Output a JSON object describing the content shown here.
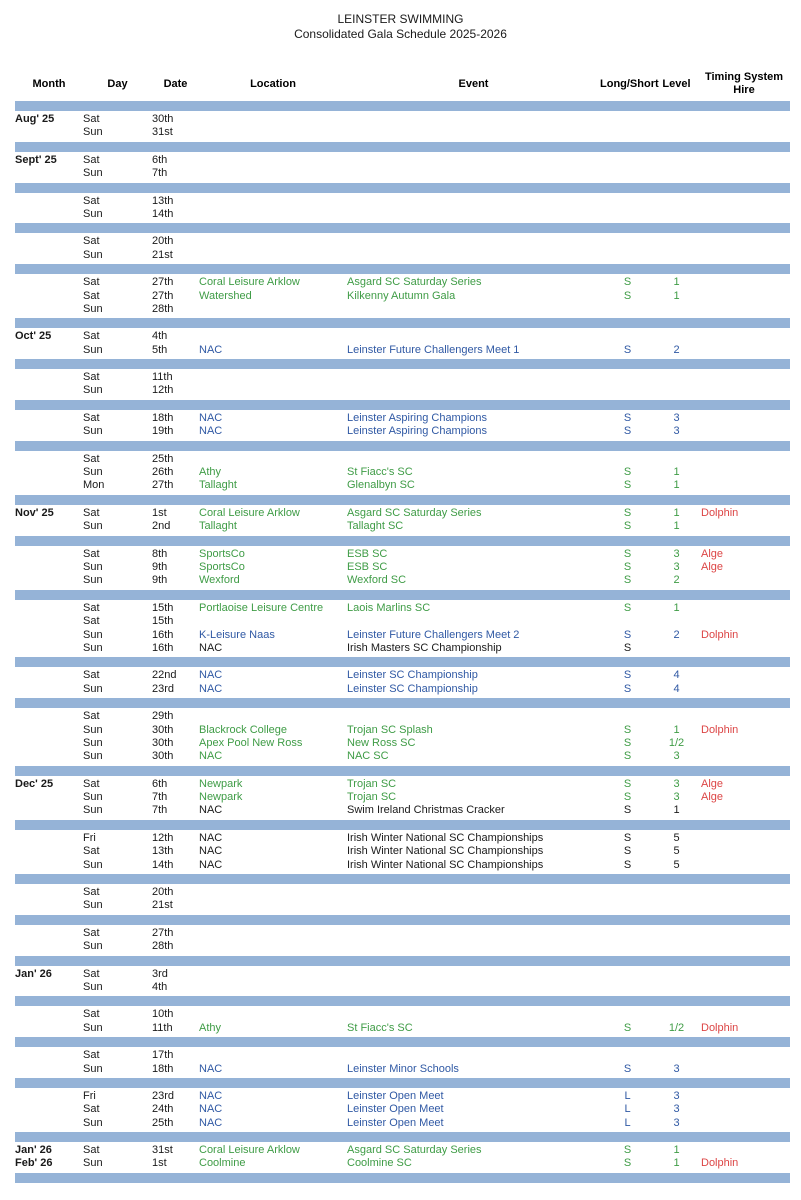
{
  "title": "LEINSTER SWIMMING",
  "subtitle": "Consolidated Gala Schedule 2025-2026",
  "columns": [
    "Month",
    "Day",
    "Date",
    "Location",
    "Event",
    "Long/Short",
    "Level",
    "Timing System Hire"
  ],
  "colors": {
    "separator": "#95B3D7",
    "green": "#3F9C46",
    "blue": "#3059A4",
    "red": "#DC4545",
    "black": "#1a1a1a"
  },
  "rows": [
    {
      "sep": true
    },
    {
      "month": "Aug' 25",
      "day": "Sat",
      "date": "30th",
      "location": "",
      "event": "",
      "long_short": "",
      "level": "",
      "timing": "",
      "color": "black"
    },
    {
      "month": "",
      "day": "Sun",
      "date": "31st",
      "location": "",
      "event": "",
      "long_short": "",
      "level": "",
      "timing": "",
      "color": "black"
    },
    {
      "sep": true
    },
    {
      "month": "Sept' 25",
      "day": "Sat",
      "date": "6th",
      "location": "",
      "event": "",
      "long_short": "",
      "level": "",
      "timing": "",
      "color": "black"
    },
    {
      "month": "",
      "day": "Sun",
      "date": "7th",
      "location": "",
      "event": "",
      "long_short": "",
      "level": "",
      "timing": "",
      "color": "black"
    },
    {
      "sep": true
    },
    {
      "month": "",
      "day": "Sat",
      "date": "13th",
      "location": "",
      "event": "",
      "long_short": "",
      "level": "",
      "timing": "",
      "color": "black"
    },
    {
      "month": "",
      "day": "Sun",
      "date": "14th",
      "location": "",
      "event": "",
      "long_short": "",
      "level": "",
      "timing": "",
      "color": "black"
    },
    {
      "sep": true
    },
    {
      "month": "",
      "day": "Sat",
      "date": "20th",
      "location": "",
      "event": "",
      "long_short": "",
      "level": "",
      "timing": "",
      "color": "black"
    },
    {
      "month": "",
      "day": "Sun",
      "date": "21st",
      "location": "",
      "event": "",
      "long_short": "",
      "level": "",
      "timing": "",
      "color": "black"
    },
    {
      "sep": true
    },
    {
      "month": "",
      "day": "Sat",
      "date": "27th",
      "location": "Coral Leisure Arklow",
      "event": "Asgard SC Saturday Series",
      "long_short": "S",
      "level": "1",
      "timing": "",
      "color": "green"
    },
    {
      "month": "",
      "day": "Sat",
      "date": "27th",
      "location": "Watershed",
      "event": "Kilkenny Autumn Gala",
      "long_short": "S",
      "level": "1",
      "timing": "",
      "color": "green"
    },
    {
      "month": "",
      "day": "Sun",
      "date": "28th",
      "location": "",
      "event": "",
      "long_short": "",
      "level": "",
      "timing": "",
      "color": "black"
    },
    {
      "sep": true
    },
    {
      "month": "Oct' 25",
      "day": "Sat",
      "date": "4th",
      "location": "",
      "event": "",
      "long_short": "",
      "level": "",
      "timing": "",
      "color": "black"
    },
    {
      "month": "",
      "day": "Sun",
      "date": "5th",
      "location": "NAC",
      "event": "Leinster Future Challengers Meet 1",
      "long_short": "S",
      "level": "2",
      "timing": "",
      "color": "blue"
    },
    {
      "sep": true
    },
    {
      "month": "",
      "day": "Sat",
      "date": "11th",
      "location": "",
      "event": "",
      "long_short": "",
      "level": "",
      "timing": "",
      "color": "black"
    },
    {
      "month": "",
      "day": "Sun",
      "date": "12th",
      "location": "",
      "event": "",
      "long_short": "",
      "level": "",
      "timing": "",
      "color": "black"
    },
    {
      "sep": true
    },
    {
      "month": "",
      "day": "Sat",
      "date": "18th",
      "location": "NAC",
      "event": "Leinster Aspiring Champions",
      "long_short": "S",
      "level": "3",
      "timing": "",
      "color": "blue"
    },
    {
      "month": "",
      "day": "Sun",
      "date": "19th",
      "location": "NAC",
      "event": "Leinster Aspiring Champions",
      "long_short": "S",
      "level": "3",
      "timing": "",
      "color": "blue"
    },
    {
      "sep": true
    },
    {
      "month": "",
      "day": "Sat",
      "date": "25th",
      "location": "",
      "event": "",
      "long_short": "",
      "level": "",
      "timing": "",
      "color": "black"
    },
    {
      "month": "",
      "day": "Sun",
      "date": "26th",
      "location": "Athy",
      "event": "St Fiacc's SC",
      "long_short": "S",
      "level": "1",
      "timing": "",
      "color": "green"
    },
    {
      "month": "",
      "day": "Mon",
      "date": "27th",
      "location": "Tallaght",
      "event": "Glenalbyn SC",
      "long_short": "S",
      "level": "1",
      "timing": "",
      "color": "green"
    },
    {
      "sep": true
    },
    {
      "month": "Nov' 25",
      "day": "Sat",
      "date": "1st",
      "location": "Coral Leisure Arklow",
      "event": "Asgard SC Saturday Series",
      "long_short": "S",
      "level": "1",
      "timing": "Dolphin",
      "color": "green"
    },
    {
      "month": "",
      "day": "Sun",
      "date": "2nd",
      "location": "Tallaght",
      "event": "Tallaght SC",
      "long_short": "S",
      "level": "1",
      "timing": "",
      "color": "green"
    },
    {
      "sep": true
    },
    {
      "month": "",
      "day": "Sat",
      "date": "8th",
      "location": "SportsCo",
      "event": "ESB SC",
      "long_short": "S",
      "level": "3",
      "timing": "Alge",
      "color": "green"
    },
    {
      "month": "",
      "day": "Sun",
      "date": "9th",
      "location": "SportsCo",
      "event": "ESB SC",
      "long_short": "S",
      "level": "3",
      "timing": "Alge",
      "color": "green"
    },
    {
      "month": "",
      "day": "Sun",
      "date": "9th",
      "location": "Wexford",
      "event": "Wexford SC",
      "long_short": "S",
      "level": "2",
      "timing": "",
      "color": "green"
    },
    {
      "sep": true
    },
    {
      "month": "",
      "day": "Sat",
      "date": "15th",
      "location": "Portlaoise Leisure Centre",
      "event": "Laois Marlins SC",
      "long_short": "S",
      "level": "1",
      "timing": "",
      "color": "green"
    },
    {
      "month": "",
      "day": "Sat",
      "date": "15th",
      "location": "",
      "event": "",
      "long_short": "",
      "level": "",
      "timing": "",
      "color": "black"
    },
    {
      "month": "",
      "day": "Sun",
      "date": "16th",
      "location": "K-Leisure Naas",
      "event": "Leinster Future Challengers Meet 2",
      "long_short": "S",
      "level": "2",
      "timing": "Dolphin",
      "color": "blue"
    },
    {
      "month": "",
      "day": "Sun",
      "date": "16th",
      "location": "NAC",
      "event": "Irish Masters SC Championship",
      "long_short": "S",
      "level": "",
      "timing": "",
      "color": "black"
    },
    {
      "sep": true
    },
    {
      "month": "",
      "day": "Sat",
      "date": "22nd",
      "location": "NAC",
      "event": "Leinster SC Championship",
      "long_short": "S",
      "level": "4",
      "timing": "",
      "color": "blue"
    },
    {
      "month": "",
      "day": "Sun",
      "date": "23rd",
      "location": "NAC",
      "event": "Leinster SC Championship",
      "long_short": "S",
      "level": "4",
      "timing": "",
      "color": "blue"
    },
    {
      "sep": true
    },
    {
      "month": "",
      "day": "Sat",
      "date": "29th",
      "location": "",
      "event": "",
      "long_short": "",
      "level": "",
      "timing": "",
      "color": "black"
    },
    {
      "month": "",
      "day": "Sun",
      "date": "30th",
      "location": "Blackrock College",
      "event": "Trojan SC Splash",
      "long_short": "S",
      "level": "1",
      "timing": "Dolphin",
      "color": "green"
    },
    {
      "month": "",
      "day": "Sun",
      "date": "30th",
      "location": "Apex Pool New Ross",
      "event": "New Ross SC",
      "long_short": "S",
      "level": "1/2",
      "timing": "",
      "color": "green"
    },
    {
      "month": "",
      "day": "Sun",
      "date": "30th",
      "location": "NAC",
      "event": "NAC SC",
      "long_short": "S",
      "level": "3",
      "timing": "",
      "color": "green"
    },
    {
      "sep": true
    },
    {
      "month": "Dec' 25",
      "day": "Sat",
      "date": "6th",
      "location": "Newpark",
      "event": "Trojan SC",
      "long_short": "S",
      "level": "3",
      "timing": "Alge",
      "color": "green"
    },
    {
      "month": "",
      "day": "Sun",
      "date": "7th",
      "location": "Newpark",
      "event": "Trojan SC",
      "long_short": "S",
      "level": "3",
      "timing": "Alge",
      "color": "green"
    },
    {
      "month": "",
      "day": "Sun",
      "date": "7th",
      "location": "NAC",
      "event": "Swim Ireland Christmas Cracker",
      "long_short": "S",
      "level": "1",
      "timing": "",
      "color": "black"
    },
    {
      "sep": true
    },
    {
      "month": "",
      "day": "Fri",
      "date": "12th",
      "location": "NAC",
      "event": "Irish Winter National SC Championships",
      "long_short": "S",
      "level": "5",
      "timing": "",
      "color": "black"
    },
    {
      "month": "",
      "day": "Sat",
      "date": "13th",
      "location": "NAC",
      "event": "Irish Winter National SC Championships",
      "long_short": "S",
      "level": "5",
      "timing": "",
      "color": "black"
    },
    {
      "month": "",
      "day": "Sun",
      "date": "14th",
      "location": "NAC",
      "event": "Irish Winter National SC Championships",
      "long_short": "S",
      "level": "5",
      "timing": "",
      "color": "black"
    },
    {
      "sep": true
    },
    {
      "month": "",
      "day": "Sat",
      "date": "20th",
      "location": "",
      "event": "",
      "long_short": "",
      "level": "",
      "timing": "",
      "color": "black"
    },
    {
      "month": "",
      "day": "Sun",
      "date": "21st",
      "location": "",
      "event": "",
      "long_short": "",
      "level": "",
      "timing": "",
      "color": "black"
    },
    {
      "sep": true
    },
    {
      "month": "",
      "day": "Sat",
      "date": "27th",
      "location": "",
      "event": "",
      "long_short": "",
      "level": "",
      "timing": "",
      "color": "black"
    },
    {
      "month": "",
      "day": "Sun",
      "date": "28th",
      "location": "",
      "event": "",
      "long_short": "",
      "level": "",
      "timing": "",
      "color": "black"
    },
    {
      "sep": true
    },
    {
      "month": "Jan' 26",
      "day": "Sat",
      "date": "3rd",
      "location": "",
      "event": "",
      "long_short": "",
      "level": "",
      "timing": "",
      "color": "black"
    },
    {
      "month": "",
      "day": "Sun",
      "date": "4th",
      "location": "",
      "event": "",
      "long_short": "",
      "level": "",
      "timing": "",
      "color": "black"
    },
    {
      "sep": true
    },
    {
      "month": "",
      "day": "Sat",
      "date": "10th",
      "location": "",
      "event": "",
      "long_short": "",
      "level": "",
      "timing": "",
      "color": "black"
    },
    {
      "month": "",
      "day": "Sun",
      "date": "11th",
      "location": "Athy",
      "event": "St Fiacc's SC",
      "long_short": "S",
      "level": "1/2",
      "timing": "Dolphin",
      "color": "green"
    },
    {
      "sep": true
    },
    {
      "month": "",
      "day": "Sat",
      "date": "17th",
      "location": "",
      "event": "",
      "long_short": "",
      "level": "",
      "timing": "",
      "color": "black"
    },
    {
      "month": "",
      "day": "Sun",
      "date": "18th",
      "location": "NAC",
      "event": "Leinster Minor Schools",
      "long_short": "S",
      "level": "3",
      "timing": "",
      "color": "blue"
    },
    {
      "sep": true
    },
    {
      "month": "",
      "day": "Fri",
      "date": "23rd",
      "location": "NAC",
      "event": "Leinster Open Meet",
      "long_short": "L",
      "level": "3",
      "timing": "",
      "color": "blue"
    },
    {
      "month": "",
      "day": "Sat",
      "date": "24th",
      "location": "NAC",
      "event": "Leinster Open Meet",
      "long_short": "L",
      "level": "3",
      "timing": "",
      "color": "blue"
    },
    {
      "month": "",
      "day": "Sun",
      "date": "25th",
      "location": "NAC",
      "event": "Leinster Open Meet",
      "long_short": "L",
      "level": "3",
      "timing": "",
      "color": "blue"
    },
    {
      "sep": true
    },
    {
      "month": "Jan' 26",
      "day": "Sat",
      "date": "31st",
      "location": "Coral Leisure Arklow",
      "event": "Asgard SC Saturday Series",
      "long_short": "S",
      "level": "1",
      "timing": "",
      "color": "green"
    },
    {
      "month": "Feb' 26",
      "day": "Sun",
      "date": "1st",
      "location": "Coolmine",
      "event": "Coolmine SC",
      "long_short": "S",
      "level": "1",
      "timing": "Dolphin",
      "color": "green"
    },
    {
      "sep": true
    }
  ]
}
